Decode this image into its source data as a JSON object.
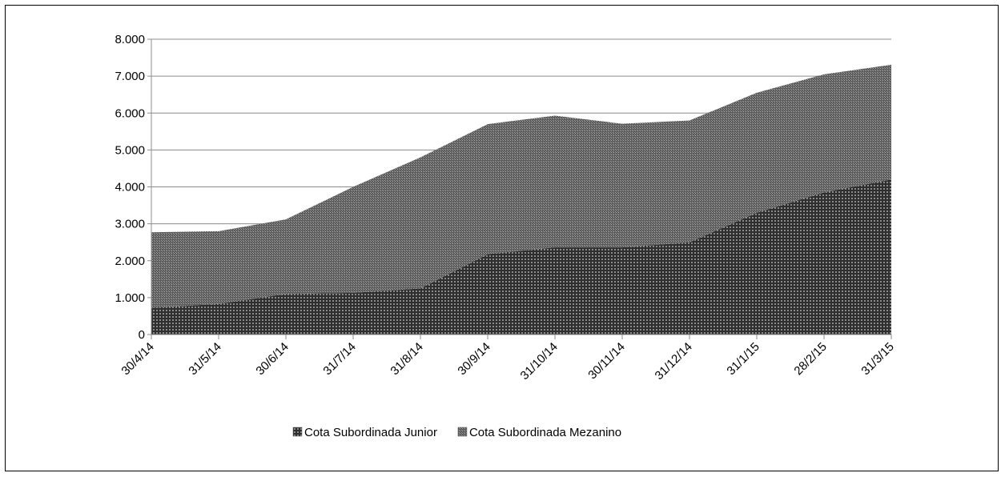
{
  "chart_data": {
    "type": "area",
    "stacked": true,
    "categories": [
      "30/4/14",
      "31/5/14",
      "30/6/14",
      "31/7/14",
      "31/8/14",
      "30/9/14",
      "31/10/14",
      "30/11/14",
      "31/12/14",
      "31/1/15",
      "28/2/15",
      "31/3/15"
    ],
    "series": [
      {
        "name": "Cota Subordinada Junior",
        "values": [
          720,
          830,
          1100,
          1130,
          1250,
          2180,
          2360,
          2360,
          2500,
          3300,
          3850,
          4200
        ],
        "color": "#3a3a3a"
      },
      {
        "name": "Cota Subordinada Mezanino",
        "values": [
          2050,
          1970,
          2020,
          2870,
          3550,
          3520,
          3570,
          3350,
          3300,
          3250,
          3200,
          3110
        ],
        "color": "#6a6a6a"
      }
    ],
    "totals": [
      2770,
      2800,
      3120,
      4000,
      4800,
      5700,
      5930,
      5710,
      5800,
      6550,
      7050,
      7310
    ],
    "yticks": [
      "0",
      "1.000",
      "2.000",
      "3.000",
      "4.000",
      "5.000",
      "6.000",
      "7.000",
      "8.000"
    ],
    "ylim": [
      0,
      8000
    ],
    "grid": true,
    "legend_position": "bottom"
  }
}
